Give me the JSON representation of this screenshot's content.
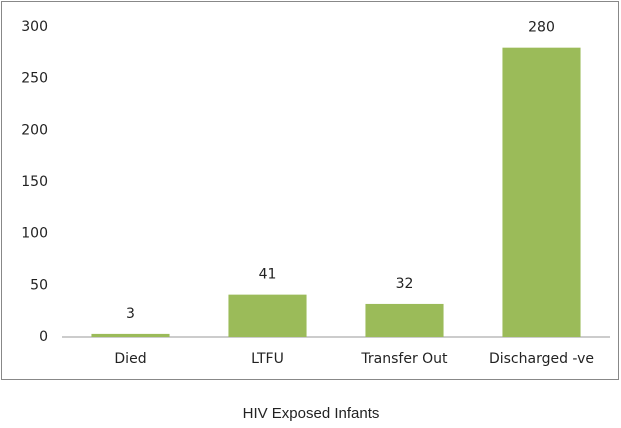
{
  "chart_data": {
    "type": "bar",
    "title": "HIV Exposed Infants",
    "categories": [
      "Died",
      "LTFU",
      "Transfer Out",
      "Discharged -ve"
    ],
    "values": [
      3,
      41,
      32,
      280
    ],
    "color": "#9bbb59",
    "ylim": [
      0,
      300
    ],
    "yticks": [
      0,
      50,
      100,
      150,
      200,
      250,
      300
    ],
    "grid": false,
    "data_labels": true
  }
}
